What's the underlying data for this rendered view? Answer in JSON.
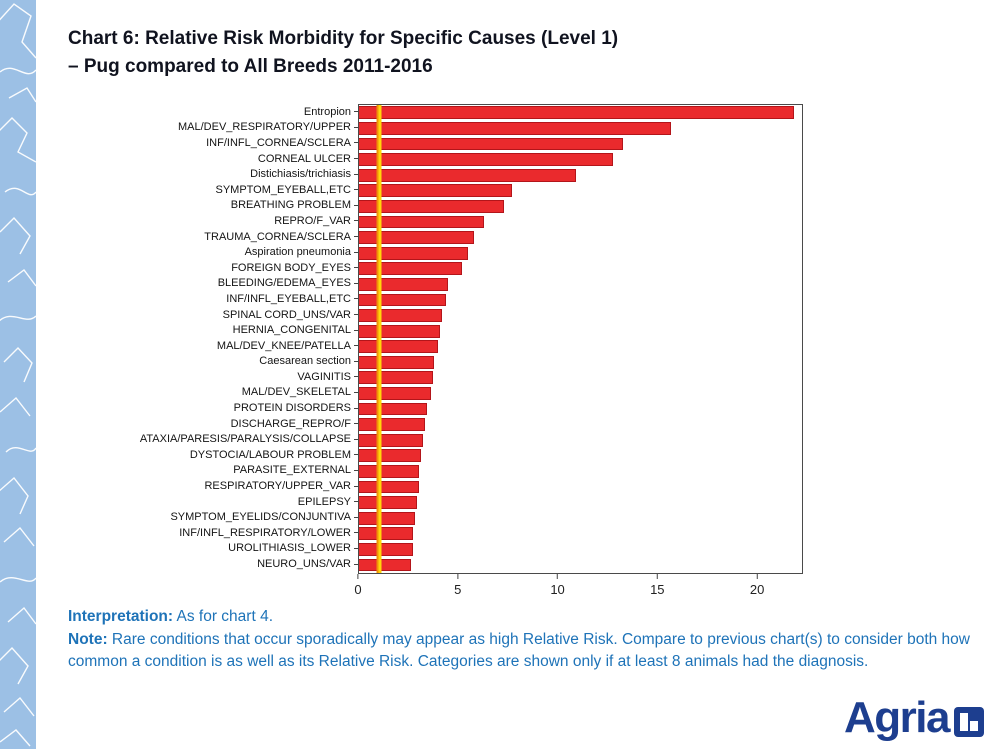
{
  "title": {
    "line1": "Chart 6: Relative Risk Morbidity for Specific Causes (Level 1)",
    "line2": "–  Pug compared to All Breeds 2011-2016"
  },
  "chart_data": {
    "type": "bar",
    "orientation": "horizontal",
    "title": "Chart 6: Relative Risk Morbidity for Specific Causes (Level 1) – Pug compared to All Breeds 2011-2016",
    "xlabel": "",
    "ylabel": "",
    "xlim": [
      0,
      22.3
    ],
    "xticks": [
      0,
      5,
      10,
      15,
      20
    ],
    "grid": false,
    "reference_line_x": 1,
    "categories": [
      "Entropion",
      "MAL/DEV_RESPIRATORY/UPPER",
      "INF/INFL_CORNEA/SCLERA",
      "CORNEAL ULCER",
      "Distichiasis/trichiasis",
      "SYMPTOM_EYEBALL,ETC",
      "BREATHING PROBLEM",
      "REPRO/F_VAR",
      "TRAUMA_CORNEA/SCLERA",
      "Aspiration pneumonia",
      "FOREIGN BODY_EYES",
      "BLEEDING/EDEMA_EYES",
      "INF/INFL_EYEBALL,ETC",
      "SPINAL CORD_UNS/VAR",
      "HERNIA_CONGENITAL",
      "MAL/DEV_KNEE/PATELLA",
      "Caesarean section",
      "VAGINITIS",
      "MAL/DEV_SKELETAL",
      "PROTEIN DISORDERS",
      "DISCHARGE_REPRO/F",
      "ATAXIA/PARESIS/PARALYSIS/COLLAPSE",
      "DYSTOCIA/LABOUR PROBLEM",
      "PARASITE_EXTERNAL",
      "RESPIRATORY/UPPER_VAR",
      "EPILEPSY",
      "SYMPTOM_EYELIDS/CONJUNTIVA",
      "INF/INFL_RESPIRATORY/LOWER",
      "UROLITHIASIS_LOWER",
      "NEURO_UNS/VAR"
    ],
    "values": [
      21.9,
      15.7,
      13.3,
      12.8,
      10.9,
      7.7,
      7.3,
      6.3,
      5.8,
      5.5,
      5.2,
      4.5,
      4.4,
      4.2,
      4.1,
      4.0,
      3.8,
      3.7,
      3.6,
      3.4,
      3.3,
      3.2,
      3.1,
      3.0,
      3.0,
      2.9,
      2.8,
      2.7,
      2.7,
      2.6
    ]
  },
  "notes": {
    "interpretation_label": "Interpretation:",
    "interpretation_text": "  As for chart 4.",
    "note_label": "Note:",
    "note_text": " Rare conditions that occur sporadically may appear as high Relative Risk. Compare to previous chart(s) to consider both how common a condition is as well as its Relative Risk. Categories are shown only if at least 8 animals had the diagnosis."
  },
  "logo": {
    "text": "Agria"
  },
  "colors": {
    "bar": "#ea2a2d",
    "bar_border": "#b3151a",
    "reference_line_yellow": "#ffd60a",
    "reference_line_orange": "#f09309",
    "note_text": "#1e73b8",
    "logo_blue": "#1d3e8f",
    "side_strip": "#9cc0e5",
    "title_text": "#10131f"
  }
}
